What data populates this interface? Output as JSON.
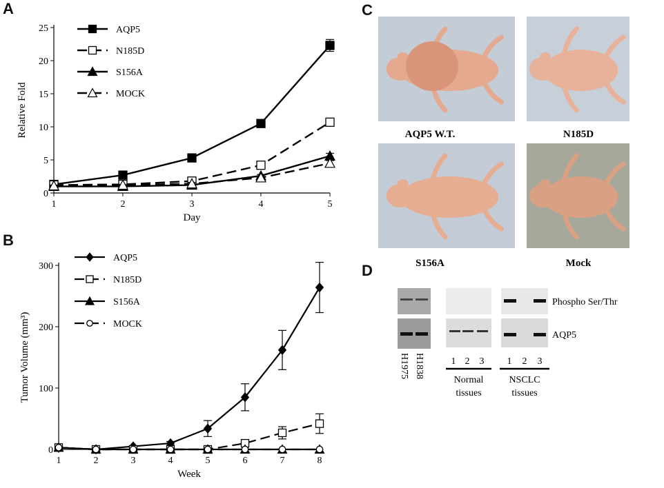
{
  "panels": {
    "a": "A",
    "b": "B",
    "c": "C",
    "d": "D"
  },
  "chart_data": [
    {
      "type": "line",
      "xlabel": "Day",
      "ylabel": "Relative Fold",
      "x": [
        1,
        2,
        3,
        4,
        5
      ],
      "xlim": [
        1,
        5
      ],
      "ylim": [
        0,
        25
      ],
      "xticks": [
        "1",
        "2",
        "3",
        "4",
        "5"
      ],
      "yticks": [
        "0",
        "5",
        "10",
        "15",
        "20",
        "25"
      ],
      "legend_position": "top-left",
      "series": [
        {
          "name": "AQP5",
          "values": [
            1.3,
            2.7,
            5.3,
            10.5,
            22.3
          ],
          "errors": [
            0.2,
            0.2,
            0.3,
            0.4,
            0.9
          ],
          "marker": "square-filled",
          "dash": "solid"
        },
        {
          "name": "N185D",
          "values": [
            1.2,
            1.3,
            1.8,
            4.2,
            10.7
          ],
          "errors": [
            0.2,
            0.2,
            0.2,
            0.3,
            0.5
          ],
          "marker": "square-open",
          "dash": "dashed"
        },
        {
          "name": "S156A",
          "values": [
            1.0,
            1.0,
            1.2,
            2.6,
            5.6
          ],
          "errors": [
            0.1,
            0.1,
            0.2,
            0.2,
            0.4
          ],
          "marker": "triangle-filled",
          "dash": "solid"
        },
        {
          "name": "MOCK",
          "values": [
            1.1,
            1.2,
            1.4,
            2.3,
            4.5
          ],
          "errors": [
            0.1,
            0.1,
            0.2,
            0.2,
            0.4
          ],
          "marker": "triangle-open",
          "dash": "dashed"
        }
      ]
    },
    {
      "type": "line",
      "xlabel": "Week",
      "ylabel": "Tumor Volume (mm³)",
      "x": [
        1,
        2,
        3,
        4,
        5,
        6,
        7,
        8
      ],
      "xlim": [
        1,
        8
      ],
      "ylim": [
        0,
        300
      ],
      "xticks": [
        "1",
        "2",
        "3",
        "4",
        "5",
        "6",
        "7",
        "8"
      ],
      "yticks": [
        "0",
        "100",
        "200",
        "300"
      ],
      "legend_position": "top-left",
      "series": [
        {
          "name": "AQP5",
          "values": [
            3,
            0,
            5,
            10,
            34,
            85,
            162,
            264
          ],
          "errors": [
            0,
            0,
            0,
            3,
            13,
            22,
            32,
            41
          ],
          "marker": "diamond-filled",
          "dash": "solid"
        },
        {
          "name": "N185D",
          "values": [
            3,
            0,
            0,
            0,
            0,
            10,
            27,
            42
          ],
          "errors": [
            0,
            0,
            0,
            0,
            0,
            3,
            10,
            16
          ],
          "marker": "square-open",
          "dash": "dashed"
        },
        {
          "name": "S156A",
          "values": [
            3,
            0,
            0,
            0,
            0,
            0,
            0,
            0
          ],
          "errors": [
            0,
            0,
            0,
            0,
            0,
            0,
            0,
            0
          ],
          "marker": "triangle-filled",
          "dash": "solid"
        },
        {
          "name": "MOCK",
          "values": [
            3,
            0,
            0,
            0,
            0,
            0,
            0,
            0
          ],
          "errors": [
            0,
            0,
            0,
            0,
            0,
            0,
            0,
            0
          ],
          "marker": "circle-open",
          "dash": "dashed"
        }
      ]
    }
  ],
  "photos": [
    {
      "label": "AQP5 W.T.",
      "bg": "#c4cdd6",
      "body": "#e5a98f"
    },
    {
      "label": "N185D",
      "bg": "#c7cfd8",
      "body": "#e8b19a"
    },
    {
      "label": "S156A",
      "bg": "#c3ccd6",
      "body": "#e6ad93"
    },
    {
      "label": "Mock",
      "bg": "#a7a89c",
      "body": "#d9a083"
    }
  ],
  "blot": {
    "row_labels": [
      "Phospho Ser/Thr",
      "AQP5"
    ],
    "cell_lines": [
      "H1975",
      "H1838"
    ],
    "normal_lanes": [
      "1",
      "2",
      "3"
    ],
    "nsclc_lanes": [
      "1",
      "2",
      "3"
    ],
    "normal_caption": [
      "Normal",
      "tissues"
    ],
    "nsclc_caption": [
      "NSCLC",
      "tissues"
    ],
    "phospho_nsclc_bands": [
      1,
      0,
      1
    ],
    "aqp5_nsclc_bands": [
      1,
      0,
      1
    ]
  }
}
